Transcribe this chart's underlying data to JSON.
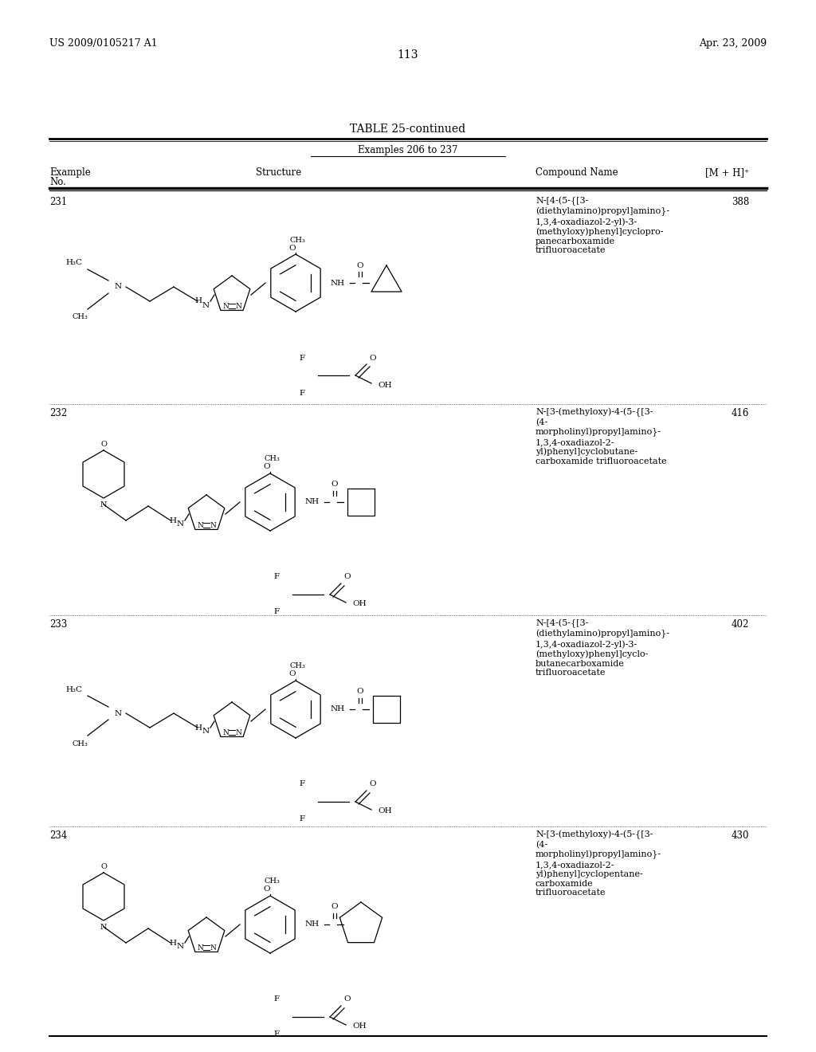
{
  "page_number": "113",
  "header_left": "US 2009/0105217 A1",
  "header_right": "Apr. 23, 2009",
  "table_title": "TABLE 25-continued",
  "subtitle": "Examples 206 to 237",
  "background_color": "#ffffff",
  "rows": [
    {
      "example": "231",
      "compound_name": "N-[4-(5-{[3-\n(diethylamino)propyl]amino}-\n1,3,4-oxadiazol-2-yl)-3-\n(methyloxy)phenyl]cyclopro-\npanecarboxamide\ntrifluoroacetate",
      "mh": "388"
    },
    {
      "example": "232",
      "compound_name": "N-[3-(methyloxy)-4-(5-{[3-\n(4-\nmorpholinyl)propyl]amino}-\n1,3,4-oxadiazol-2-\nyl)phenyl]cyclobutane-\ncarboxamide trifluoroacetate",
      "mh": "416"
    },
    {
      "example": "233",
      "compound_name": "N-[4-(5-{[3-\n(diethylamino)propyl]amino}-\n1,3,4-oxadiazol-2-yl)-3-\n(methyloxy)phenyl]cyclo-\nbutanecarboxamide\ntrifluoroacetate",
      "mh": "402"
    },
    {
      "example": "234",
      "compound_name": "N-[3-(methyloxy)-4-(5-{[3-\n(4-\nmorpholinyl)propyl]amino}-\n1,3,4-oxadiazol-2-\nyl)phenyl]cyclopentane-\ncarboxamide\ntrifluoroacetate",
      "mh": "430"
    }
  ]
}
